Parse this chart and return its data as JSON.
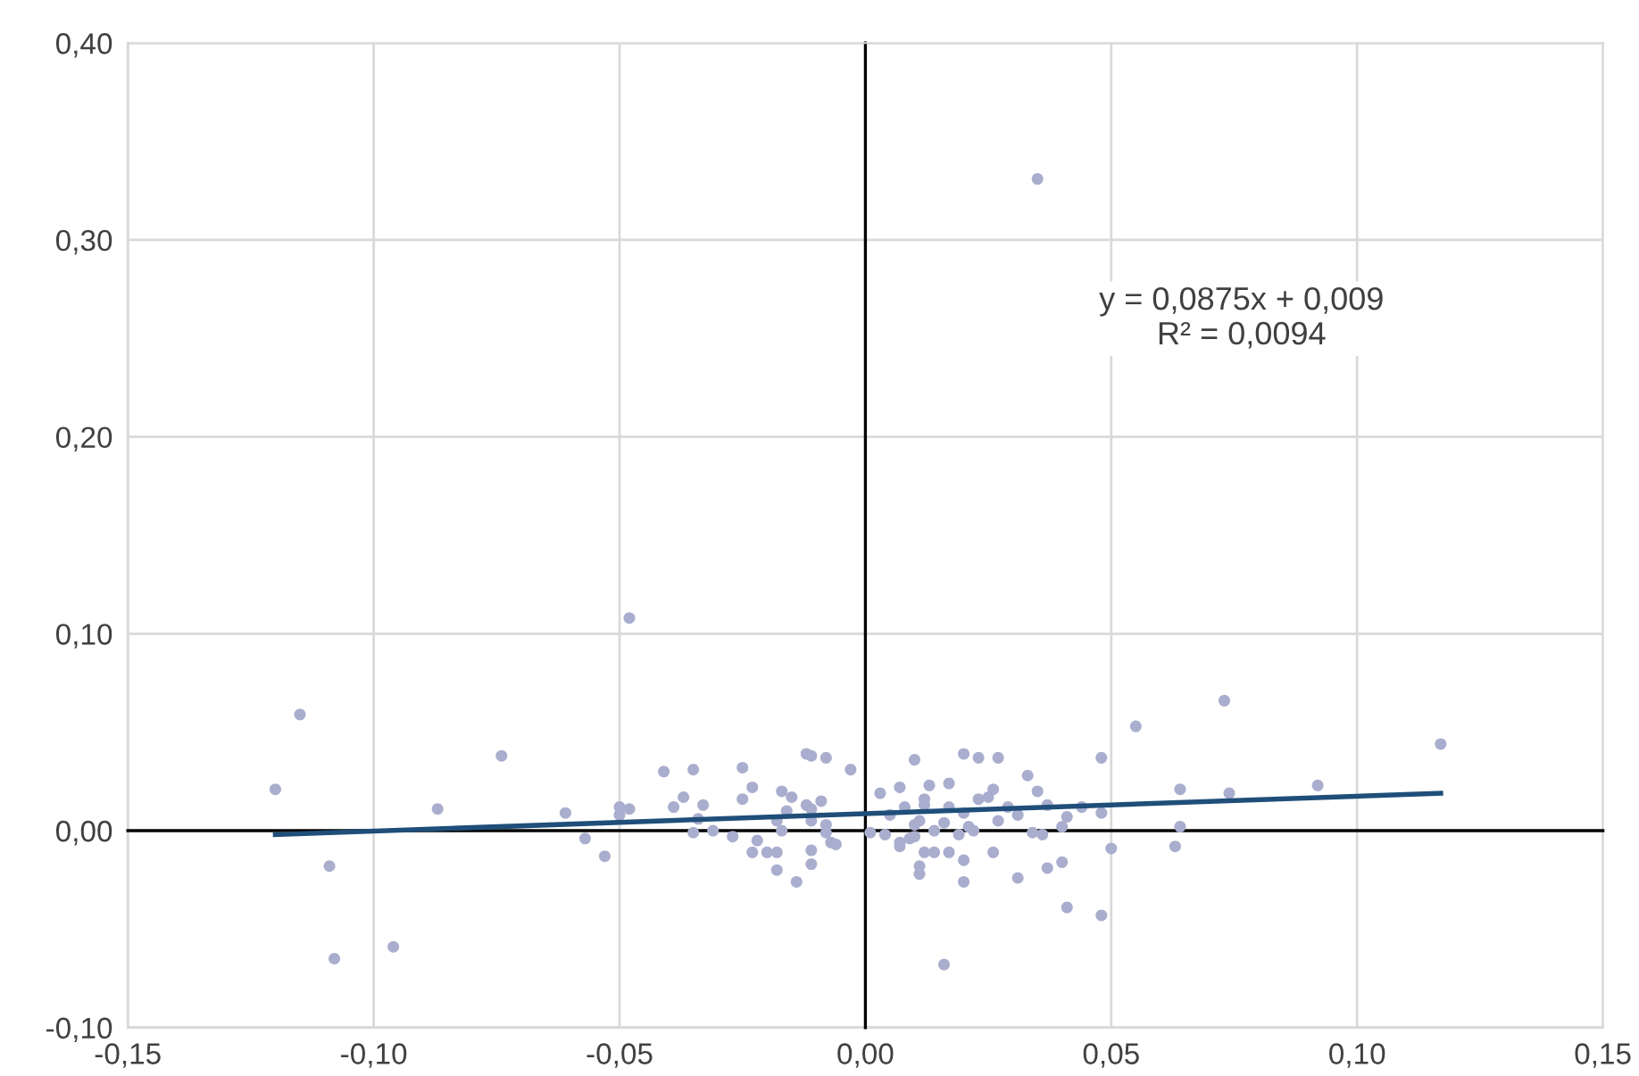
{
  "chart_data": {
    "type": "scatter",
    "xlim": [
      -0.15,
      0.15
    ],
    "ylim": [
      -0.1,
      0.4
    ],
    "xticks": [
      {
        "value": -0.15,
        "label": "-0,15"
      },
      {
        "value": -0.1,
        "label": "-0,10"
      },
      {
        "value": -0.05,
        "label": "-0,05"
      },
      {
        "value": 0,
        "label": "0,00"
      },
      {
        "value": 0.05,
        "label": "0,05"
      },
      {
        "value": 0.1,
        "label": "0,10"
      },
      {
        "value": 0.15,
        "label": "0,15"
      }
    ],
    "yticks": [
      {
        "value": -0.1,
        "label": "-0,10"
      },
      {
        "value": 0,
        "label": "0,00"
      },
      {
        "value": 0.1,
        "label": "0,10"
      },
      {
        "value": 0.2,
        "label": "0,20"
      },
      {
        "value": 0.3,
        "label": "0,30"
      },
      {
        "value": 0.4,
        "label": "0,40"
      }
    ],
    "grid": true,
    "annotations": [
      "y = 0,0875x + 0,009",
      "R² = 0,0094"
    ],
    "series": [
      {
        "color": "#a9aece",
        "marker": "circle",
        "x": [
          -0.12,
          -0.115,
          -0.109,
          -0.108,
          -0.096,
          -0.087,
          -0.074,
          -0.061,
          -0.057,
          -0.053,
          -0.048,
          -0.05,
          -0.048,
          -0.05,
          -0.041,
          -0.035,
          -0.037,
          -0.039,
          -0.033,
          -0.034,
          -0.035,
          -0.031,
          -0.027,
          -0.025,
          -0.025,
          -0.023,
          -0.023,
          -0.022,
          -0.02,
          -0.018,
          -0.018,
          -0.014,
          -0.017,
          -0.018,
          -0.017,
          -0.015,
          -0.016,
          -0.012,
          -0.011,
          -0.008,
          -0.012,
          -0.011,
          -0.009,
          -0.011,
          -0.011,
          -0.011,
          -0.008,
          -0.008,
          -0.007,
          -0.006,
          -0.003,
          0.003,
          0.001,
          0.01,
          0.02,
          0.023,
          0.027,
          0.007,
          0.013,
          0.017,
          0.005,
          0.008,
          0.012,
          0.012,
          0.01,
          0.011,
          0.004,
          0.007,
          0.009,
          0.007,
          0.01,
          0.014,
          0.016,
          0.017,
          0.02,
          0.021,
          0.022,
          0.019,
          0.023,
          0.025,
          0.026,
          0.027,
          0.029,
          0.031,
          0.033,
          0.035,
          0.037,
          0.034,
          0.036,
          0.04,
          0.041,
          0.044,
          0.048,
          0.048,
          0.055,
          0.05,
          0.012,
          0.014,
          0.017,
          0.02,
          0.011,
          0.011,
          0.02,
          0.026,
          0.031,
          0.037,
          0.04,
          0.041,
          0.016,
          0.048,
          0.035,
          0.073,
          0.064,
          0.074,
          0.092,
          0.064,
          0.063,
          0.117
        ],
        "values": [
          0.021,
          0.059,
          -0.018,
          -0.065,
          -0.059,
          0.011,
          0.038,
          0.009,
          -0.004,
          -0.013,
          0.108,
          0.012,
          0.011,
          0.008,
          0.03,
          0.031,
          0.017,
          0.012,
          0.013,
          0.006,
          -0.001,
          0.0,
          -0.003,
          0.032,
          0.016,
          0.022,
          -0.011,
          -0.005,
          -0.011,
          -0.011,
          -0.02,
          -0.026,
          0.0,
          0.005,
          0.02,
          0.017,
          0.01,
          0.039,
          0.038,
          0.037,
          0.013,
          0.011,
          0.015,
          0.005,
          -0.01,
          -0.017,
          0.003,
          -0.001,
          -0.006,
          -0.007,
          0.031,
          0.019,
          -0.001,
          0.036,
          0.039,
          0.037,
          0.037,
          0.022,
          0.023,
          0.024,
          0.008,
          0.012,
          0.016,
          0.013,
          0.003,
          0.005,
          -0.002,
          -0.006,
          -0.004,
          -0.008,
          -0.003,
          0.0,
          0.004,
          0.012,
          0.009,
          0.002,
          0.0,
          -0.002,
          0.016,
          0.017,
          0.021,
          0.005,
          0.012,
          0.008,
          0.028,
          0.02,
          0.013,
          -0.001,
          -0.002,
          0.002,
          0.007,
          0.012,
          0.009,
          0.037,
          0.053,
          -0.009,
          -0.011,
          -0.011,
          -0.011,
          -0.015,
          -0.018,
          -0.022,
          -0.026,
          -0.011,
          -0.024,
          -0.019,
          -0.016,
          -0.039,
          -0.068,
          -0.043,
          0.331,
          0.066,
          0.021,
          0.019,
          0.023,
          0.002,
          -0.008,
          0.044
        ]
      },
      {
        "type": "line",
        "color": "#1f4e79",
        "marker": "none",
        "line_style": "solid",
        "x": [
          -0.12,
          0.117
        ],
        "values": [
          -0.002,
          0.019
        ]
      }
    ]
  }
}
